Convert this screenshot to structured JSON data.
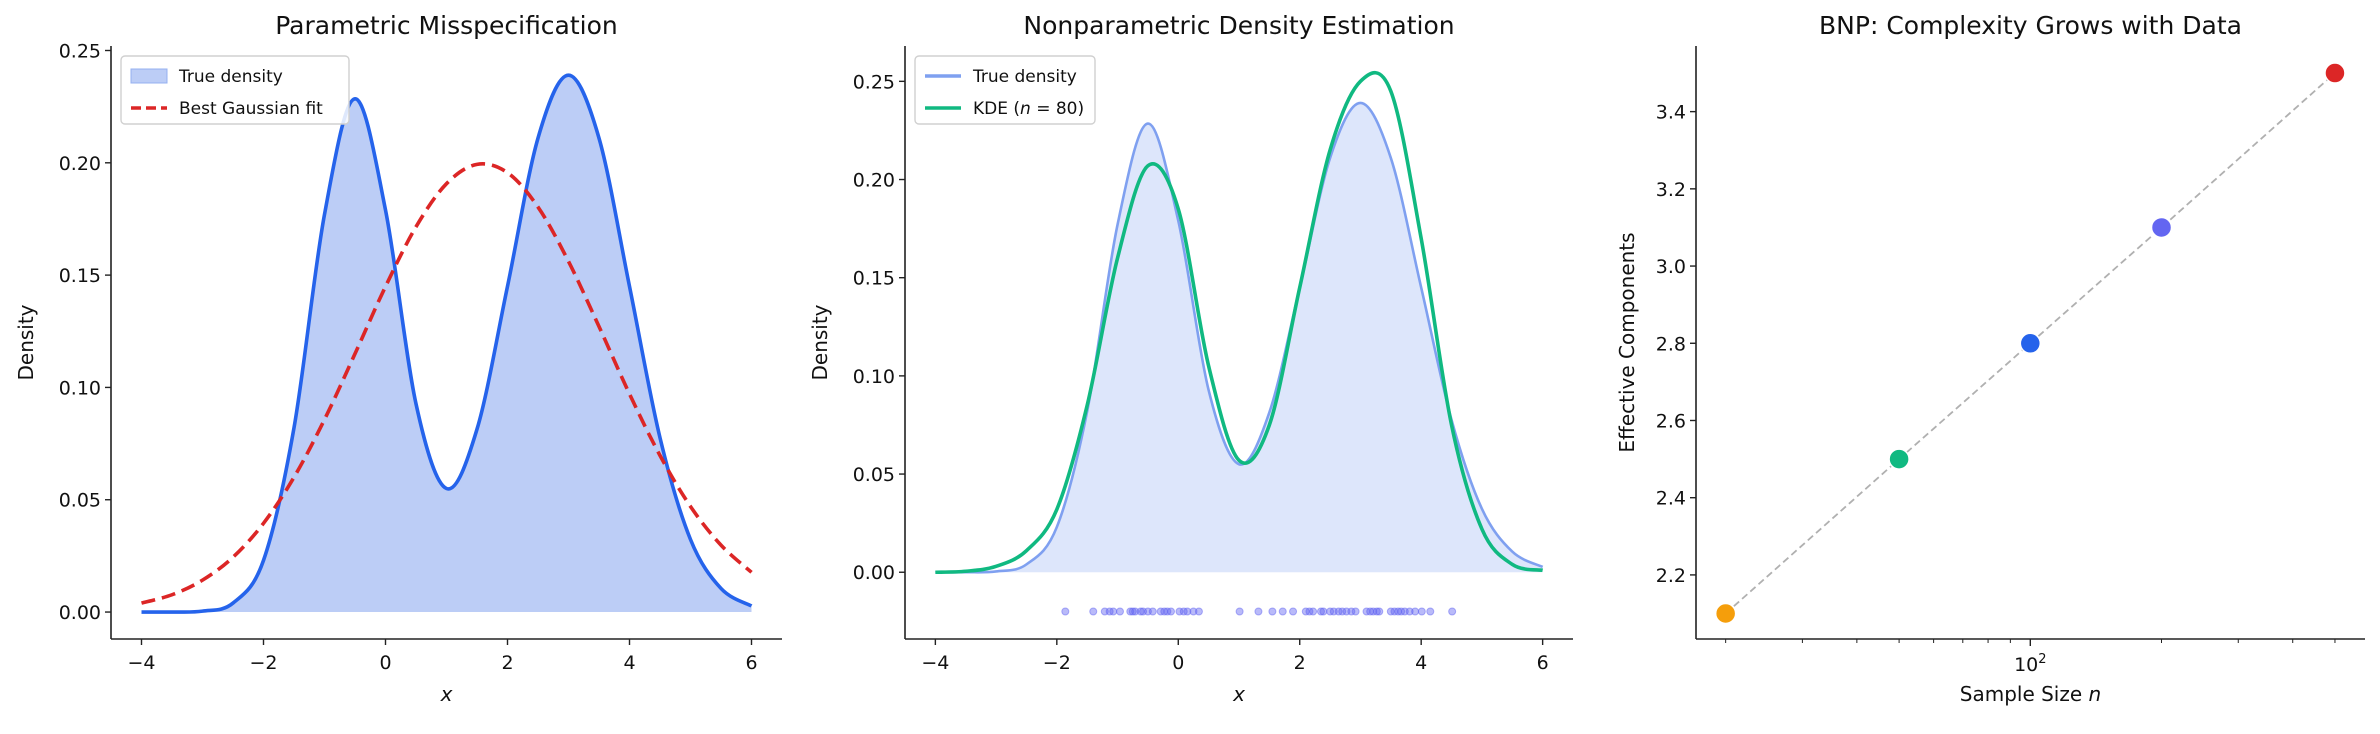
{
  "chart_data": [
    {
      "type": "line",
      "title": "Parametric Misspecification",
      "xlabel": "x",
      "ylabel": "Density",
      "xlim": [
        -4.5,
        6.5
      ],
      "ylim": [
        -0.012,
        0.252
      ],
      "xticks": [
        "−4",
        "−2",
        "0",
        "2",
        "4",
        "6"
      ],
      "xtick_values": [
        -4,
        -2,
        0,
        2,
        4,
        6
      ],
      "yticks": [
        "0.00",
        "0.05",
        "0.10",
        "0.15",
        "0.20",
        "0.25"
      ],
      "ytick_values": [
        0,
        0.05,
        0.1,
        0.15,
        0.2,
        0.25
      ],
      "grid": false,
      "legend_placement": "top-left",
      "x": [
        -4,
        -3.5,
        -3,
        -2.5,
        -2,
        -1.5,
        -1,
        -0.5,
        0,
        0.5,
        1,
        1.5,
        2,
        2.5,
        3,
        3.5,
        4,
        4.5,
        5,
        5.5,
        6
      ],
      "series": [
        {
          "name": "True density",
          "style": "filled area with solid line",
          "color": "#2563eb",
          "fill": "#bccdf6",
          "values": [
            0,
            0,
            0.0004,
            0.004,
            0.023,
            0.082,
            0.177,
            0.2285,
            0.179,
            0.0927,
            0.055,
            0.0814,
            0.145,
            0.211,
            0.239,
            0.211,
            0.145,
            0.0776,
            0.0323,
            0.0105,
            0.0027
          ]
        },
        {
          "name": "Best Gaussian fit",
          "style": "dashed",
          "color": "#dc2626",
          "values": [
            0.004,
            0.0077,
            0.0142,
            0.0244,
            0.0395,
            0.06,
            0.0857,
            0.115,
            0.1449,
            0.1715,
            0.1907,
            0.1993,
            0.1956,
            0.1803,
            0.1561,
            0.1271,
            0.0971,
            0.0697,
            0.047,
            0.0298,
            0.0177
          ]
        }
      ]
    },
    {
      "type": "line",
      "title": "Nonparametric Density Estimation",
      "xlabel": "x",
      "ylabel": "Density",
      "xlim": [
        -4.5,
        6.5
      ],
      "ylim": [
        -0.034,
        0.268
      ],
      "xticks": [
        "−4",
        "−2",
        "0",
        "2",
        "4",
        "6"
      ],
      "xtick_values": [
        -4,
        -2,
        0,
        2,
        4,
        6
      ],
      "yticks": [
        "0.00",
        "0.05",
        "0.10",
        "0.15",
        "0.20",
        "0.25"
      ],
      "ytick_values": [
        0,
        0.05,
        0.1,
        0.15,
        0.2,
        0.25
      ],
      "grid": false,
      "legend_placement": "top-left",
      "x": [
        -4,
        -3.5,
        -3,
        -2.5,
        -2,
        -1.5,
        -1,
        -0.5,
        0,
        0.5,
        1,
        1.5,
        2,
        2.5,
        3,
        3.5,
        4,
        4.5,
        5,
        5.5,
        6
      ],
      "series": [
        {
          "name": "True density",
          "style": "filled area with solid line",
          "color": "#7fa0f0",
          "fill": "#dde6fb",
          "values": [
            0,
            0,
            0.0004,
            0.004,
            0.023,
            0.082,
            0.177,
            0.2285,
            0.179,
            0.0927,
            0.055,
            0.0814,
            0.145,
            0.211,
            0.239,
            0.211,
            0.145,
            0.0776,
            0.0323,
            0.0105,
            0.0027
          ]
        },
        {
          "name_prefix": "KDE (",
          "name_var": "n",
          "name_suffix": " = 80)",
          "style": "solid",
          "color": "#10b981",
          "values": [
            0,
            0.0005,
            0.003,
            0.011,
            0.032,
            0.085,
            0.16,
            0.207,
            0.185,
            0.105,
            0.057,
            0.075,
            0.145,
            0.215,
            0.25,
            0.245,
            0.17,
            0.075,
            0.022,
            0.004,
            0.001
          ]
        }
      ],
      "rug": {
        "y": -0.02,
        "color": "#6366f1",
        "x": [
          -1.86,
          -1.4,
          -1.21,
          -1.13,
          -1.07,
          -0.96,
          -0.79,
          -0.75,
          -0.71,
          -0.62,
          -0.58,
          -0.5,
          -0.42,
          -0.29,
          -0.23,
          -0.18,
          -0.12,
          0.02,
          0.09,
          0.15,
          0.25,
          0.34,
          1.01,
          1.32,
          1.55,
          1.72,
          1.89,
          2.1,
          2.16,
          2.22,
          2.35,
          2.39,
          2.5,
          2.56,
          2.64,
          2.7,
          2.77,
          2.85,
          2.92,
          3.1,
          3.16,
          3.21,
          3.27,
          3.31,
          3.5,
          3.56,
          3.62,
          3.67,
          3.73,
          3.81,
          3.9,
          4.01,
          4.15,
          4.51
        ]
      }
    },
    {
      "type": "scatter",
      "title": "BNP: Complexity Grows with Data",
      "xlabel_prefix": "Sample Size ",
      "xlabel_var": "n",
      "ylabel": "Effective Components",
      "xscale": "log",
      "xlim": [
        17.1,
        586
      ],
      "ylim": [
        2.034,
        3.57
      ],
      "xtick_major": [
        {
          "value": 100,
          "base": "10",
          "exp": "2"
        }
      ],
      "xtick_minor": [
        20,
        30,
        40,
        50,
        60,
        70,
        80,
        90,
        200,
        300,
        400,
        500
      ],
      "yticks": [
        "2.2",
        "2.4",
        "2.6",
        "2.8",
        "3.0",
        "3.2",
        "3.4"
      ],
      "ytick_values": [
        2.2,
        2.4,
        2.6,
        2.8,
        3.0,
        3.2,
        3.4
      ],
      "grid": false,
      "connector": {
        "style": "dashed",
        "color": "#b0b0b0"
      },
      "x": [
        20,
        50,
        100,
        200,
        500
      ],
      "y": [
        2.1,
        2.5,
        2.8,
        3.1,
        3.5
      ],
      "colors": [
        "#f59e0b",
        "#10b981",
        "#2563eb",
        "#6366f1",
        "#dc2626"
      ]
    }
  ]
}
